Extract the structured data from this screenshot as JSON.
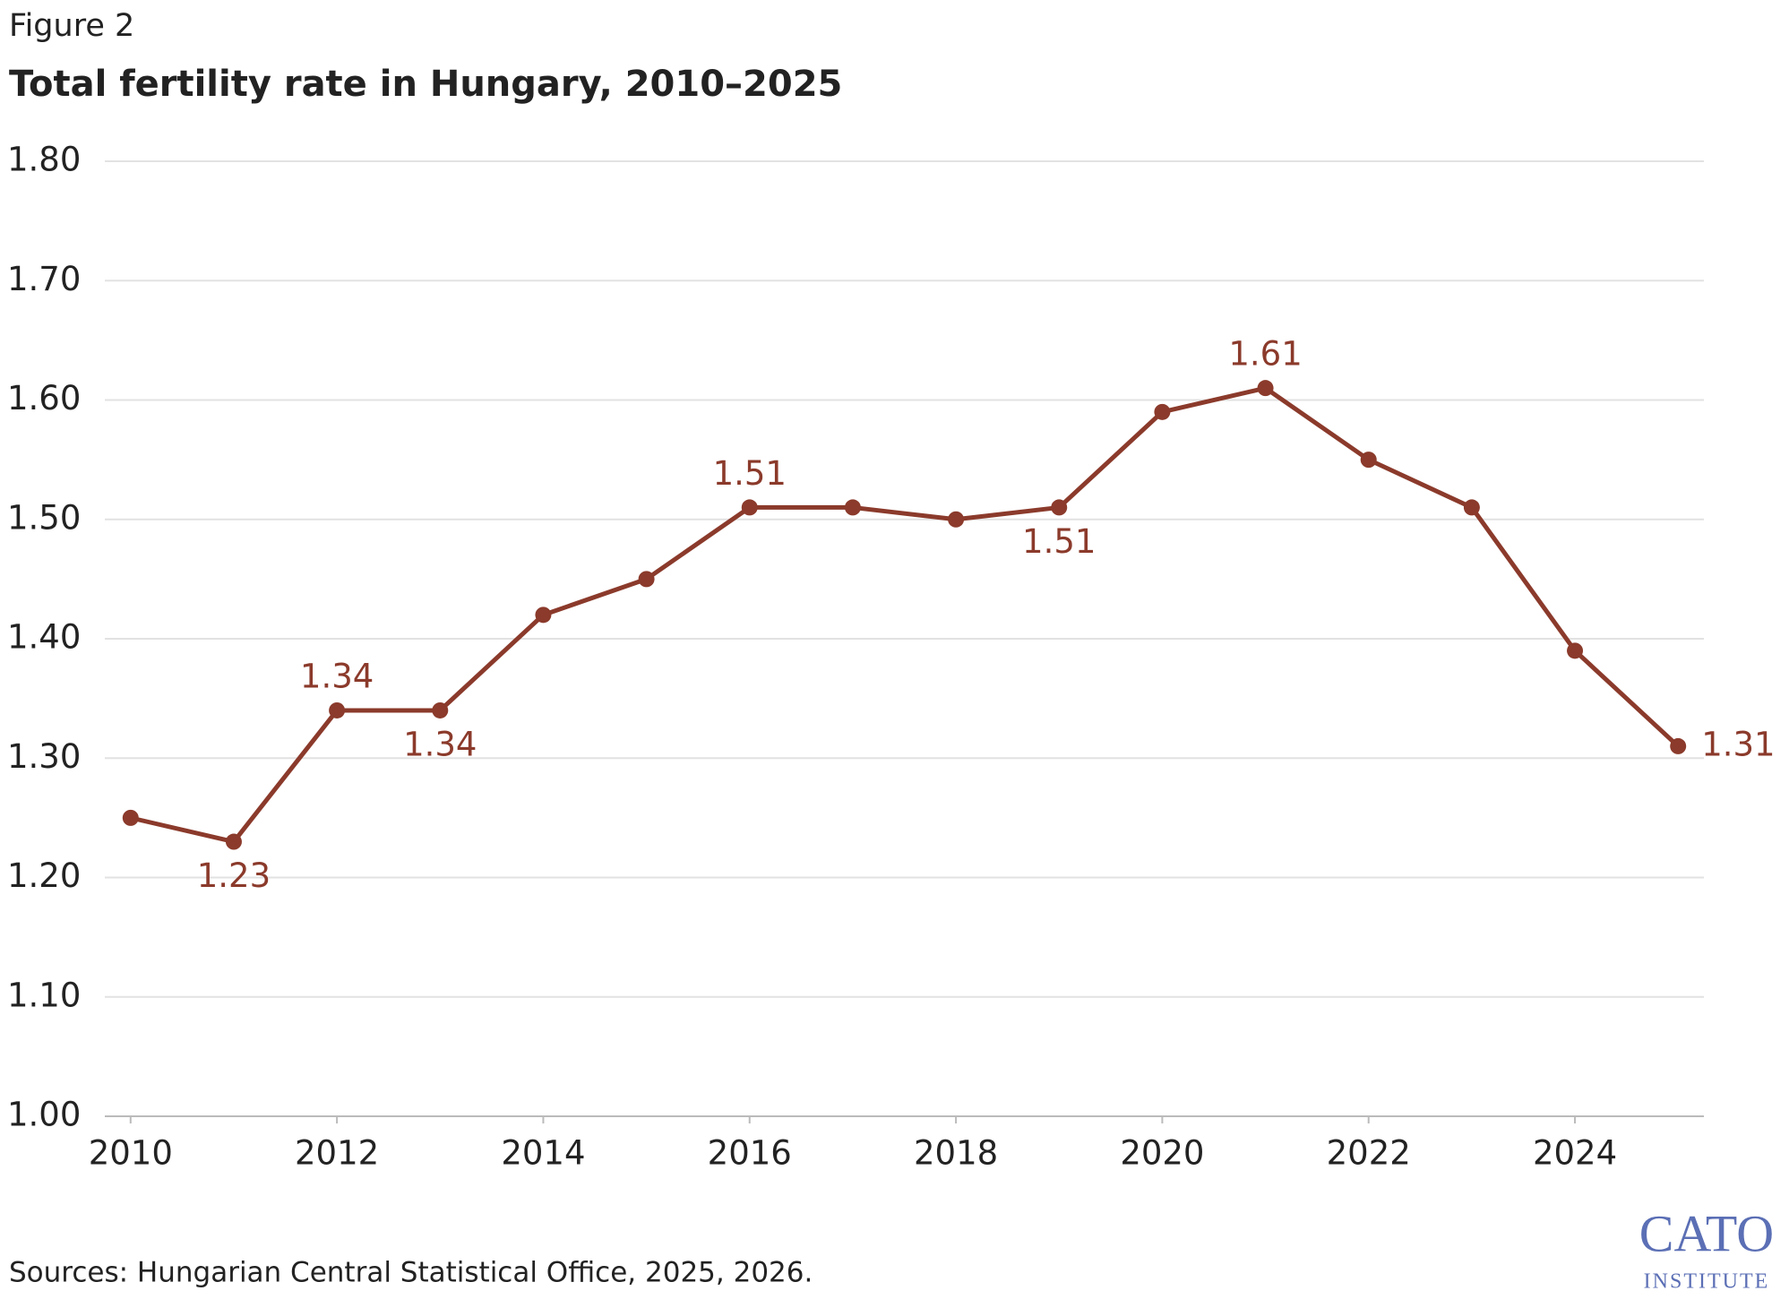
{
  "chart_data": {
    "type": "line",
    "figure_label": "Figure 2",
    "title": "Total fertility rate in Hungary, 2010–2025",
    "source": "Sources: Hungarian Central Statistical Office, 2025, 2026.",
    "logo": "CATO",
    "logo_subtitle": "INSTITUTE",
    "x": [
      2010,
      2011,
      2012,
      2013,
      2014,
      2015,
      2016,
      2017,
      2018,
      2019,
      2020,
      2021,
      2022,
      2023,
      2024,
      2025
    ],
    "series": [
      {
        "name": "Total fertility rate",
        "color": "#8b3a2b",
        "values": [
          1.25,
          1.23,
          1.34,
          1.34,
          1.42,
          1.45,
          1.51,
          1.51,
          1.5,
          1.51,
          1.59,
          1.61,
          1.55,
          1.51,
          1.39,
          1.31
        ],
        "value_labels": [
          null,
          "1.23",
          "1.34",
          "1.34",
          null,
          null,
          "1.51",
          null,
          null,
          "1.51",
          null,
          "1.61",
          null,
          null,
          null,
          "1.31"
        ]
      }
    ],
    "xlim": [
      2009.75,
      2025.25
    ],
    "xticks": [
      2010,
      2012,
      2014,
      2016,
      2018,
      2020,
      2022,
      2024
    ],
    "ylim": [
      1.0,
      1.8
    ],
    "yticks": [
      {
        "value": 1.0,
        "label": "1.00"
      },
      {
        "value": 1.1,
        "label": "1.10"
      },
      {
        "value": 1.2,
        "label": "1.20"
      },
      {
        "value": 1.3,
        "label": "1.30"
      },
      {
        "value": 1.4,
        "label": "1.40"
      },
      {
        "value": 1.5,
        "label": "1.50"
      },
      {
        "value": 1.6,
        "label": "1.60"
      },
      {
        "value": 1.7,
        "label": "1.70"
      },
      {
        "value": 1.8,
        "label": "1.80"
      }
    ],
    "grid": true
  }
}
